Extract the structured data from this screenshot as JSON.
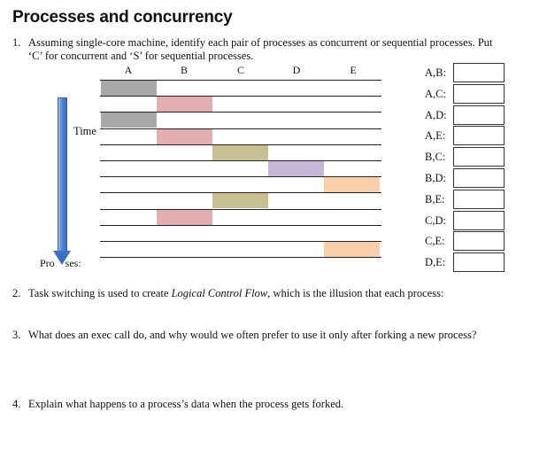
{
  "title": "Processes and concurrency",
  "questions": [
    {
      "num": "1.",
      "line1": "Assuming single-core machine, identify each pair of processes as concurrent or sequential processes. Put",
      "line2": "‘C’ for concurrent and ‘S’ for sequential processes."
    },
    {
      "num": "2.",
      "pre": "Task switching is used to create ",
      "emph": "Logical Control Flow",
      "post": ", which is the  illusion that each process:"
    },
    {
      "num": "3.",
      "text": "What does an exec call do, and why would we often prefer to use it only after forking a new process?"
    },
    {
      "num": "4.",
      "text": "Explain what happens to a process’s data when the process gets forked."
    }
  ],
  "diagram": {
    "columns": [
      "A",
      "B",
      "C",
      "D",
      "E"
    ],
    "time_label": "Time",
    "processes_label": "Pro    ses:",
    "colors": {
      "A": "#a8a8a8",
      "B": "#e3aeb0",
      "C": "#c9bf92",
      "D": "#c6b7d8",
      "E": "#f9ceaa"
    },
    "timeline": [
      "A",
      "B",
      "A",
      "B",
      "C",
      "D",
      "E",
      "C",
      "B",
      "",
      "E"
    ]
  },
  "pairs": [
    "A,B:",
    "A,C:",
    "A,D:",
    "A,E:",
    "B,C:",
    "B,D:",
    "B,E:",
    "C,D:",
    "C,E:",
    "D,E:"
  ]
}
